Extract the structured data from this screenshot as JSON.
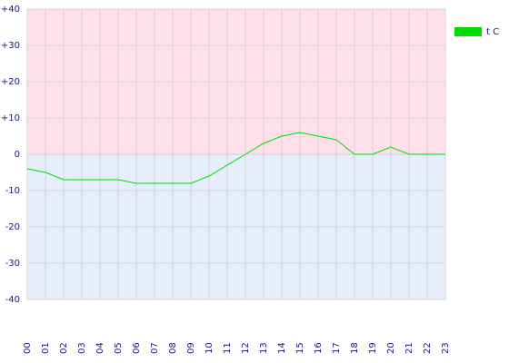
{
  "chart_data": {
    "type": "line",
    "categories": [
      "00",
      "01",
      "02",
      "03",
      "04",
      "05",
      "06",
      "07",
      "08",
      "09",
      "10",
      "11",
      "12",
      "13",
      "14",
      "15",
      "16",
      "17",
      "18",
      "19",
      "20",
      "21",
      "22",
      "23"
    ],
    "series": [
      {
        "name": "t C",
        "color": "#00dd00",
        "values": [
          -4,
          -5,
          -7,
          -7,
          -7,
          -7,
          -8,
          -8,
          -8,
          -8,
          -6,
          -3,
          0,
          3,
          5,
          6,
          5,
          4,
          0,
          0,
          2,
          0,
          0,
          0
        ]
      }
    ],
    "ylim": [
      -40,
      40
    ],
    "yticks": [
      {
        "value": 40,
        "label": "+40"
      },
      {
        "value": 30,
        "label": "+30"
      },
      {
        "value": 20,
        "label": "+20"
      },
      {
        "value": 10,
        "label": "+10"
      },
      0,
      -10,
      -20,
      -30,
      -40
    ],
    "grid": true,
    "legend": "top-right"
  }
}
